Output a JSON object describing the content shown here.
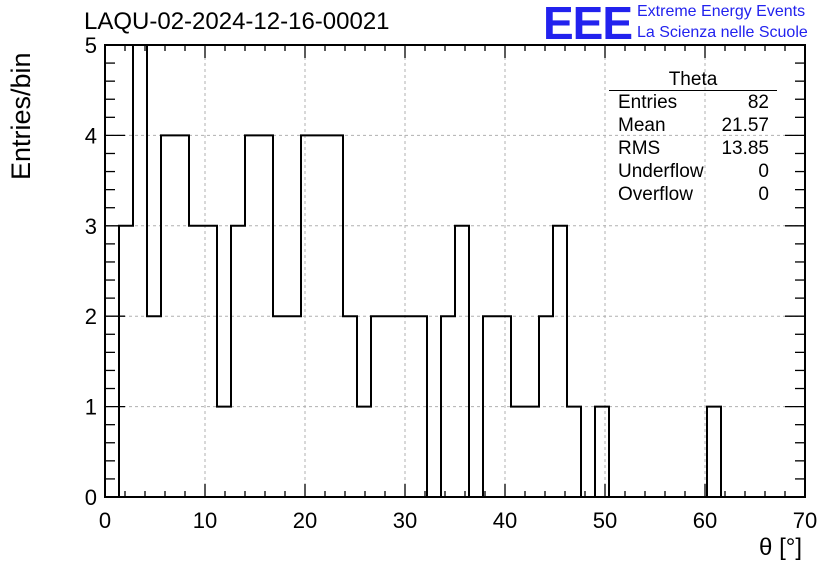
{
  "header": {
    "title": "LAQU-02-2024-12-16-00021",
    "logo_text": "EEE",
    "logo_line1": "Extreme Energy Events",
    "logo_line2": "La Scienza nelle Scuole"
  },
  "stats": {
    "title": "Theta",
    "rows": [
      {
        "label": "Entries",
        "value": "82"
      },
      {
        "label": "Mean",
        "value": "21.57"
      },
      {
        "label": "RMS",
        "value": "13.85"
      },
      {
        "label": "Underflow",
        "value": "0"
      },
      {
        "label": "Overflow",
        "value": "0"
      }
    ]
  },
  "colors": {
    "logo": "#2222ee",
    "line": "#000000",
    "grid": "#b0b0b0"
  },
  "chart_data": {
    "type": "bar",
    "style": "step-histogram",
    "title": "LAQU-02-2024-12-16-00021",
    "xlabel": "θ [°]",
    "ylabel": "Entries/bin",
    "xlim": [
      0,
      70
    ],
    "ylim": [
      0,
      5
    ],
    "grid": true,
    "x_ticks": [
      "0",
      "10",
      "20",
      "30",
      "40",
      "50",
      "60",
      "70"
    ],
    "y_ticks": [
      "0",
      "1",
      "2",
      "3",
      "4",
      "5"
    ],
    "bin_edges": [
      1.4,
      2.8,
      4.2,
      5.6,
      7.0,
      8.4,
      9.8,
      11.2,
      12.6,
      14.0,
      15.4,
      16.8,
      18.2,
      19.6,
      21.0,
      22.4,
      23.8,
      25.2,
      26.6,
      28.0,
      29.4,
      30.8,
      32.2,
      33.6,
      35.0,
      36.4,
      37.8,
      39.2,
      40.6,
      42.0,
      43.4,
      44.8,
      46.2,
      47.6,
      49.0,
      50.4,
      51.8,
      53.2,
      54.6,
      56.0,
      57.4,
      58.8,
      60.2,
      61.6
    ],
    "values": [
      3,
      5,
      2,
      4,
      4,
      3,
      3,
      1,
      3,
      4,
      4,
      2,
      2,
      4,
      4,
      4,
      2,
      1,
      2,
      2,
      2,
      2,
      0,
      2,
      3,
      0,
      2,
      2,
      1,
      1,
      2,
      3,
      1,
      0,
      1,
      0,
      0,
      0,
      0,
      0,
      0,
      0,
      1
    ]
  }
}
